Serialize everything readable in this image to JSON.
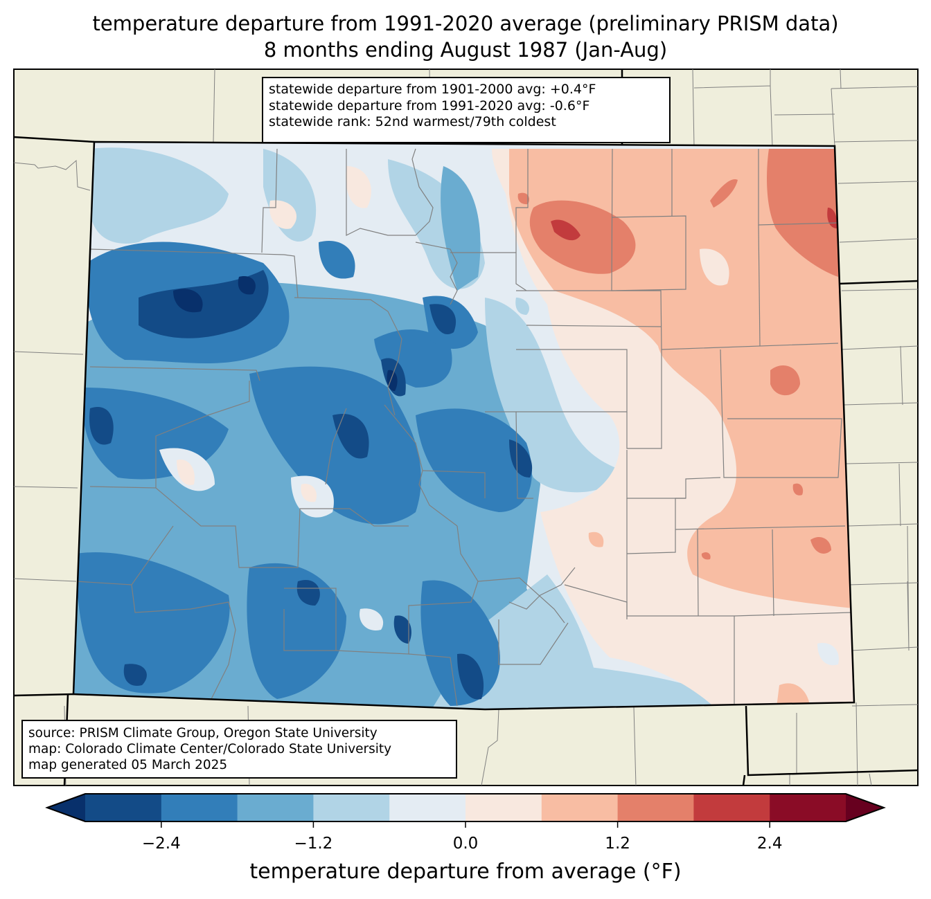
{
  "title": {
    "line1": "temperature departure from 1991-2020 average (preliminary PRISM data)",
    "line2": "8 months ending August 1987 (Jan-Aug)"
  },
  "stats_box": {
    "line1": "statewide departure from 1901-2000 avg: +0.4°F",
    "line2": "statewide departure from 1991-2020 avg: -0.6°F",
    "line3": "statewide rank: 52nd warmest/79th coldest"
  },
  "source_box": {
    "line1": "source: PRISM Climate Group, Oregon State University",
    "line2": "map: Colorado Climate Center/Colorado State University",
    "line3": "map generated 05 March 2025"
  },
  "colors": {
    "land_background": "#efeedc",
    "state_border": "#000000",
    "county_border": "#808080"
  },
  "chart_data": {
    "type": "heatmap",
    "title": "temperature departure from 1991-2020 average (preliminary PRISM data)",
    "subtitle": "8 months ending August 1987 (Jan-Aug)",
    "region": "Colorado",
    "colorbar": {
      "label": "temperature departure from average (°F)",
      "units": "°F",
      "range": [
        -3.0,
        3.0
      ],
      "level_step": 0.6,
      "extend": "both",
      "ticks": [
        -2.4,
        -1.2,
        0.0,
        1.2,
        2.4
      ],
      "tick_labels": [
        "−2.4",
        "−1.2",
        "0.0",
        "1.2",
        "2.4"
      ],
      "bins": [
        {
          "min": null,
          "max": -3.0,
          "color": "#08306b"
        },
        {
          "min": -3.0,
          "max": -2.4,
          "color": "#134b87"
        },
        {
          "min": -2.4,
          "max": -1.8,
          "color": "#327eb9"
        },
        {
          "min": -1.8,
          "max": -1.2,
          "color": "#6aacd0"
        },
        {
          "min": -1.2,
          "max": -0.6,
          "color": "#b1d4e6"
        },
        {
          "min": -0.6,
          "max": 0.0,
          "color": "#e4ecf3"
        },
        {
          "min": 0.0,
          "max": 0.6,
          "color": "#f8e8df"
        },
        {
          "min": 0.6,
          "max": 1.2,
          "color": "#f8bda3"
        },
        {
          "min": 1.2,
          "max": 1.8,
          "color": "#e4806a"
        },
        {
          "min": 1.8,
          "max": 2.4,
          "color": "#c23b3d"
        },
        {
          "min": 2.4,
          "max": 3.0,
          "color": "#8a0c26"
        },
        {
          "min": 3.0,
          "max": null,
          "color": "#67001f"
        }
      ]
    },
    "spatial_pattern": {
      "west_mountains": "mostly -0.6 to -3.0 (cool)",
      "front_range_and_eastern_plains_west": "-0.6 to +0.6",
      "northeast_plains": "+0.6 to +2.4 (warm)",
      "southeast_plains": "+0.6 to +1.8"
    },
    "statewide": {
      "departure_1901_2000_avg_F": 0.4,
      "departure_1991_2020_avg_F": -0.6,
      "rank_warmest": 52,
      "rank_coldest": 79
    }
  }
}
